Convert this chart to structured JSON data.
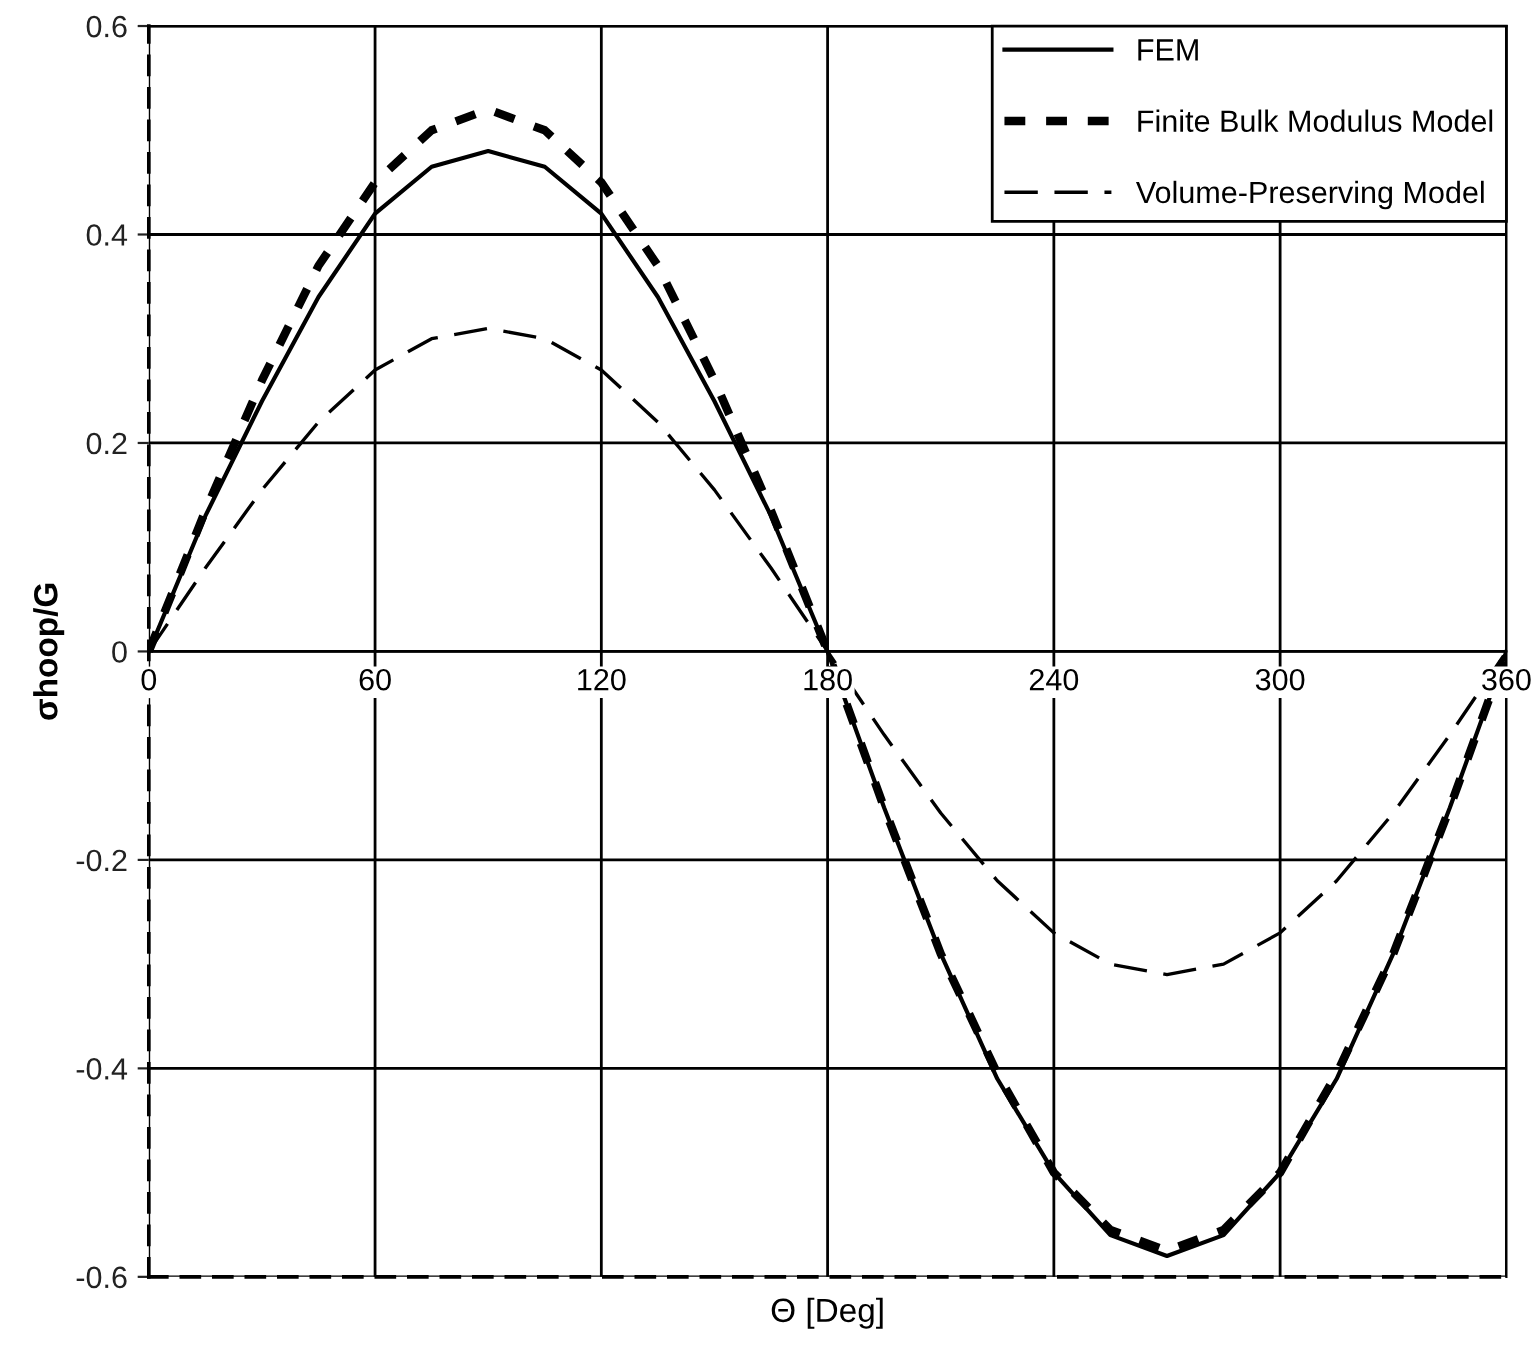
{
  "chart_data": {
    "type": "line",
    "xlabel": "Θ [Deg]",
    "ylabel": "σhoop/G",
    "x": [
      0,
      15,
      30,
      45,
      60,
      75,
      90,
      105,
      120,
      135,
      150,
      165,
      180,
      195,
      210,
      225,
      240,
      255,
      270,
      285,
      300,
      315,
      330,
      345,
      360
    ],
    "series": [
      {
        "name": "FEM",
        "color": "#000000",
        "line_style": "solid",
        "values": [
          0,
          0.13,
          0.24,
          0.34,
          0.42,
          0.465,
          0.48,
          0.465,
          0.42,
          0.34,
          0.24,
          0.13,
          0,
          -0.15,
          -0.29,
          -0.41,
          -0.5,
          -0.56,
          -0.58,
          -0.56,
          -0.5,
          -0.41,
          -0.29,
          -0.15,
          0
        ]
      },
      {
        "name": "Finite Bulk Modulus Model",
        "color": "#000000",
        "line_style": "dotted",
        "values": [
          0,
          0.135,
          0.26,
          0.37,
          0.45,
          0.5,
          0.52,
          0.5,
          0.45,
          0.37,
          0.26,
          0.135,
          0,
          -0.15,
          -0.29,
          -0.405,
          -0.5,
          -0.555,
          -0.575,
          -0.555,
          -0.5,
          -0.405,
          -0.29,
          -0.15,
          0
        ]
      },
      {
        "name": "Volume-Preserving Model",
        "color": "#000000",
        "line_style": "dashed",
        "values": [
          0,
          0.08,
          0.155,
          0.22,
          0.27,
          0.3,
          0.31,
          0.3,
          0.27,
          0.22,
          0.155,
          0.08,
          0,
          -0.08,
          -0.155,
          -0.22,
          -0.27,
          -0.3,
          -0.31,
          -0.3,
          -0.27,
          -0.22,
          -0.155,
          -0.08,
          0
        ]
      }
    ],
    "xlim": [
      0,
      360
    ],
    "xticks": [
      0,
      60,
      120,
      180,
      240,
      300,
      360
    ],
    "ylim": [
      -0.6,
      0.6
    ],
    "yticks": [
      -0.6,
      -0.4,
      -0.2,
      0,
      0.2,
      0.4,
      0.6
    ],
    "grid": true,
    "legend": "top right"
  }
}
